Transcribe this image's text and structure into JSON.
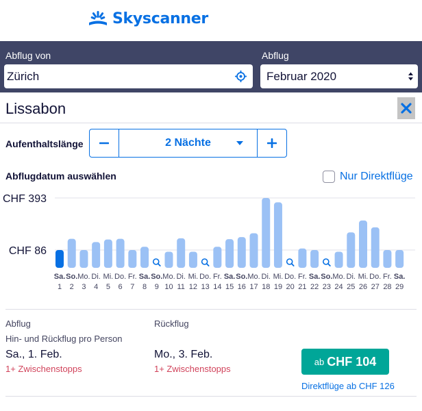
{
  "brand": {
    "name": "Skyscanner",
    "color": "#0770e3"
  },
  "search": {
    "from_label": "Abflug von",
    "from_value": "Zürich",
    "date_label": "Abflug",
    "date_value": "Februar 2020",
    "panel_color": "#3f4566"
  },
  "destination": {
    "city": "Lissabon"
  },
  "stay": {
    "label": "Aufenthaltslänge",
    "value": "2 Nächte"
  },
  "date_picker": {
    "label": "Abflugdatum auswählen",
    "direct_only_label": "Nur Direktflüge",
    "direct_only_checked": false
  },
  "chart_data": {
    "type": "bar",
    "y_reference_labels": [
      "CHF 393",
      "CHF 86"
    ],
    "y_reference_values": [
      393,
      86
    ],
    "days": [
      {
        "day": "Sa.",
        "date": "1",
        "price": 86,
        "bold": true,
        "selected": true
      },
      {
        "day": "So.",
        "date": "2",
        "price": 152,
        "bold": true
      },
      {
        "day": "Mo.",
        "date": "3",
        "price": 86
      },
      {
        "day": "Di.",
        "date": "4",
        "price": 133
      },
      {
        "day": "Mi.",
        "date": "5",
        "price": 148
      },
      {
        "day": "Do.",
        "date": "6",
        "price": 152
      },
      {
        "day": "Fr.",
        "date": "7",
        "price": 86
      },
      {
        "day": "Sa.",
        "date": "8",
        "price": 105,
        "bold": true
      },
      {
        "day": "So.",
        "date": "9",
        "price": null,
        "bold": true
      },
      {
        "day": "Mo.",
        "date": "10",
        "price": 76
      },
      {
        "day": "Di.",
        "date": "11",
        "price": 155
      },
      {
        "day": "Mi.",
        "date": "12",
        "price": 76
      },
      {
        "day": "Do.",
        "date": "13",
        "price": null
      },
      {
        "day": "Fr.",
        "date": "14",
        "price": 105
      },
      {
        "day": "Sa.",
        "date": "15",
        "price": 150,
        "bold": true
      },
      {
        "day": "So.",
        "date": "16",
        "price": 162,
        "bold": true
      },
      {
        "day": "Mo.",
        "date": "17",
        "price": 185
      },
      {
        "day": "Di.",
        "date": "18",
        "price": 393
      },
      {
        "day": "Mi.",
        "date": "19",
        "price": 367
      },
      {
        "day": "Do.",
        "date": "20",
        "price": null
      },
      {
        "day": "Fr.",
        "date": "21",
        "price": 95
      },
      {
        "day": "Sa.",
        "date": "22",
        "price": 86,
        "bold": true
      },
      {
        "day": "So.",
        "date": "23",
        "price": null,
        "bold": true
      },
      {
        "day": "Mo.",
        "date": "24",
        "price": 76
      },
      {
        "day": "Di.",
        "date": "25",
        "price": 190
      },
      {
        "day": "Mi.",
        "date": "26",
        "price": 260
      },
      {
        "day": "Do.",
        "date": "27",
        "price": 220
      },
      {
        "day": "Fr.",
        "date": "28",
        "price": 86
      },
      {
        "day": "Sa.",
        "date": "29",
        "price": 86,
        "bold": true
      }
    ],
    "bar_color": "#9bc1f5",
    "selected_bar_color": "#0770e3"
  },
  "result": {
    "outbound_label": "Abflug",
    "return_label": "Rückflug",
    "price_note": "Hin- und Rückflug pro Person",
    "outbound_date": "Sa., 1. Feb.",
    "return_date": "Mo., 3. Feb.",
    "outbound_stops": "1+ Zwischenstopps",
    "return_stops": "1+ Zwischenstopps",
    "price_prefix": "ab",
    "price": "CHF 104",
    "direct_price": "Direktflüge ab CHF 126",
    "price_button_color": "#00a698",
    "stops_color": "#d1435b"
  }
}
